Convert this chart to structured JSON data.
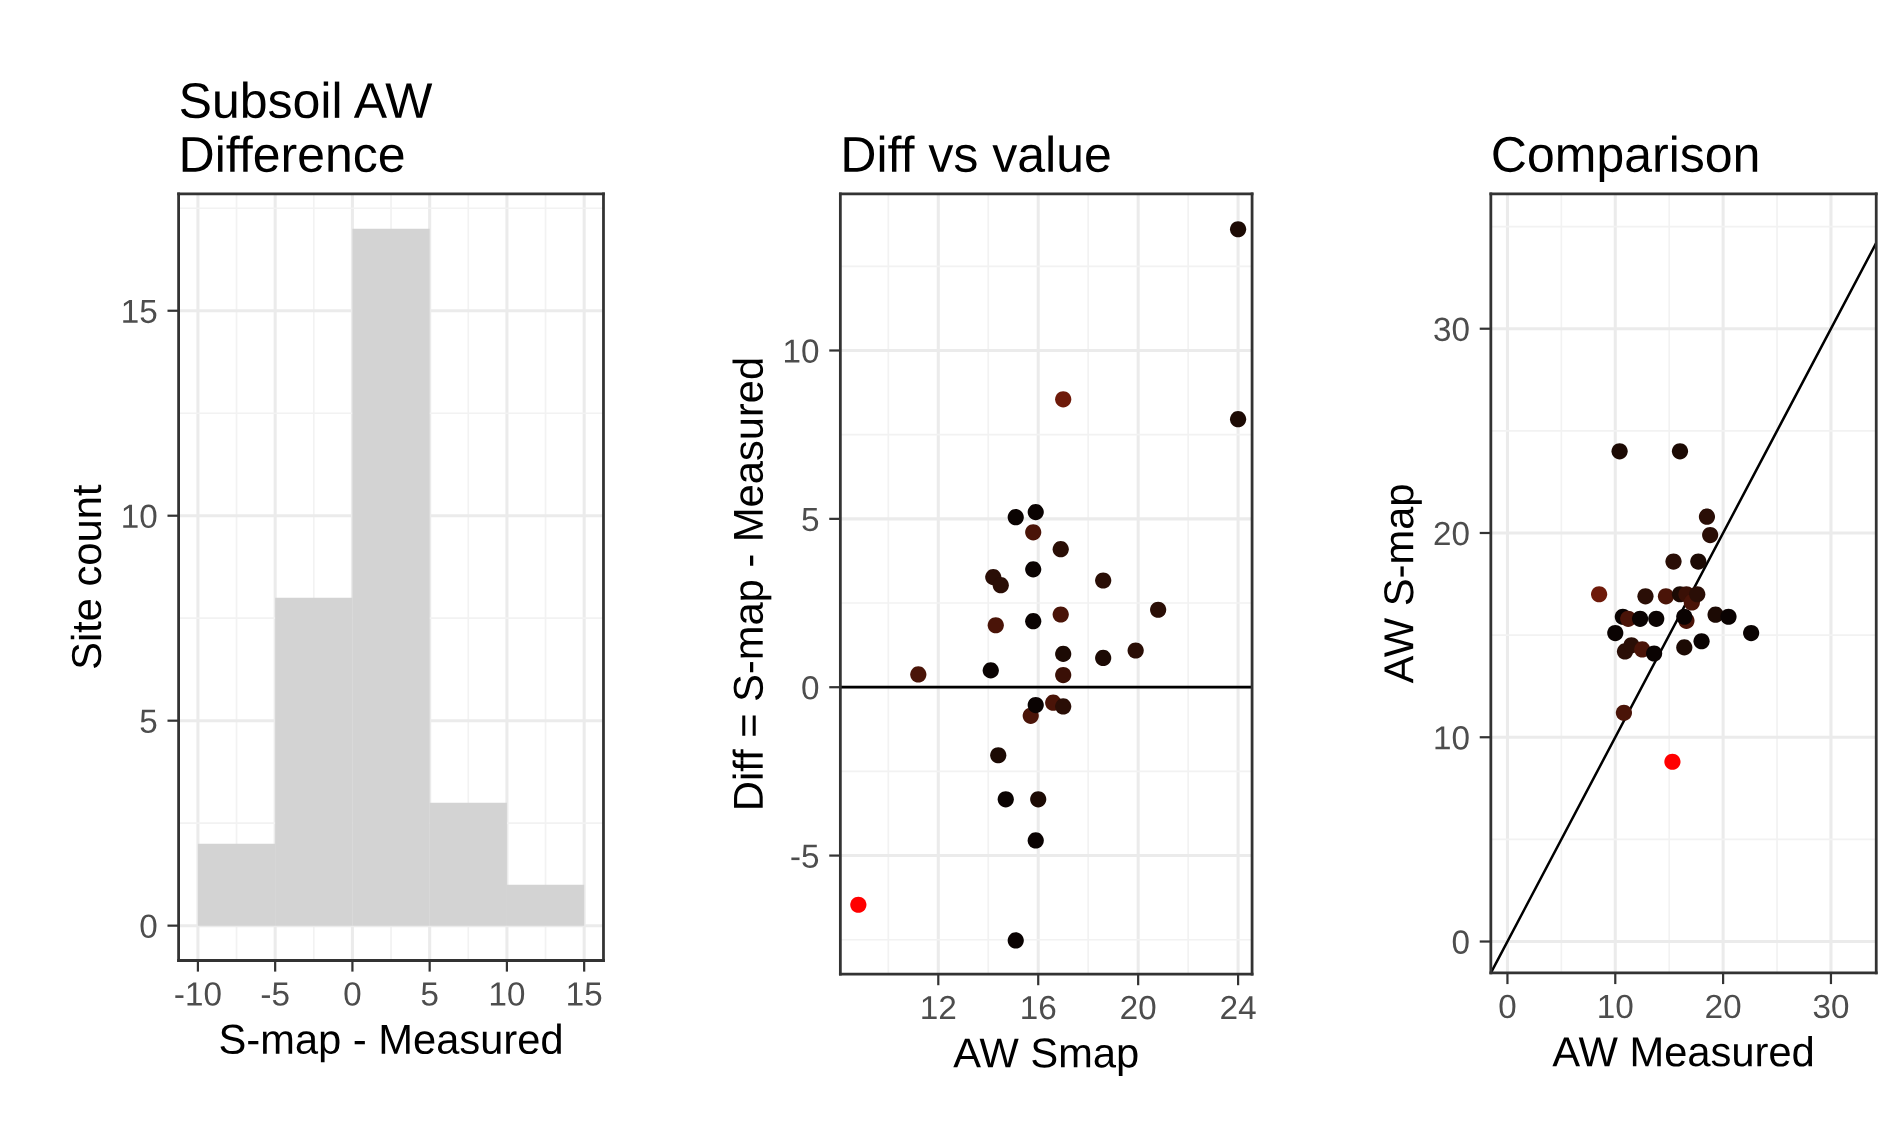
{
  "chart_data": [
    {
      "type": "histogram",
      "title": "Subsoil AW\nDifference",
      "xlabel": "S-map - Measured",
      "ylabel": "Site count",
      "bins": [
        -10,
        -5,
        0,
        5,
        10,
        15
      ],
      "values": [
        2,
        8,
        17,
        3,
        1
      ],
      "color": "#d3d3d3",
      "xlim": [
        -11.25,
        16.25
      ],
      "ylim": [
        -0.85,
        17.85
      ],
      "xticks": [
        -10,
        -5,
        0,
        5,
        10,
        15
      ],
      "yticks": [
        0,
        5,
        10,
        15
      ],
      "grid": true
    },
    {
      "type": "scatter",
      "title": "Diff vs value",
      "xlabel": "AW Smap",
      "ylabel": "Diff = S-map - Measured",
      "xlim": [
        8.08,
        24.56
      ],
      "ylim": [
        -8.52,
        14.65
      ],
      "xticks": [
        12,
        16,
        20,
        24
      ],
      "yticks": [
        -5,
        0,
        5,
        10
      ],
      "grid": true,
      "ref_lines": [
        {
          "axis": "y",
          "value": 0,
          "color": "#000000"
        }
      ],
      "series": [
        {
          "type": "scatter",
          "marker": "circle",
          "x": [
            24.0,
            24.0,
            17.0,
            15.1,
            15.9,
            15.8,
            16.9,
            14.2,
            14.5,
            15.8,
            18.6,
            20.8,
            14.3,
            15.8,
            16.9,
            17.0,
            17.0,
            18.6,
            19.9,
            11.2,
            14.1,
            15.7,
            15.9,
            16.6,
            17.0,
            14.4,
            14.7,
            16.0,
            15.9,
            15.1,
            8.8
          ],
          "values": [
            13.6,
            7.96,
            8.55,
            5.05,
            5.2,
            4.6,
            4.1,
            3.27,
            3.03,
            3.5,
            3.17,
            2.3,
            1.84,
            1.96,
            2.16,
            0.99,
            0.36,
            0.87,
            1.09,
            0.38,
            0.5,
            -0.85,
            -0.53,
            -0.46,
            -0.57,
            -2.02,
            -3.33,
            -3.33,
            -4.55,
            -7.52,
            -6.46
          ],
          "colors": [
            "#1c0a04",
            "#1c0a04",
            "#6e1a0a",
            "#0a0302",
            "#0a0302",
            "#4a1408",
            "#2a0e06",
            "#2a0e06",
            "#2a0e06",
            "#0a0302",
            "#2a0e06",
            "#2a0e06",
            "#4a1408",
            "#0a0302",
            "#4a1408",
            "#1c0a04",
            "#3a1006",
            "#1c0a04",
            "#2a0e06",
            "#4a1408",
            "#0a0302",
            "#4a1408",
            "#0a0302",
            "#4a1408",
            "#2a0e06",
            "#1c0a04",
            "#0a0302",
            "#1c0a04",
            "#0a0302",
            "#0a0302",
            "#ff0000"
          ]
        }
      ]
    },
    {
      "type": "scatter",
      "title": "Comparison",
      "xlabel": "AW Measured",
      "ylabel": "AW S-map",
      "xlim": [
        -1.54,
        34.2
      ],
      "ylim": [
        -1.54,
        36.6
      ],
      "xticks": [
        0,
        10,
        20,
        30
      ],
      "yticks": [
        0,
        10,
        20,
        30
      ],
      "grid": true,
      "series": [
        {
          "type": "scatter",
          "marker": "circle",
          "x": [
            10.4,
            16.0,
            8.5,
            10.0,
            10.7,
            11.2,
            12.8,
            10.9,
            11.5,
            12.3,
            15.4,
            18.5,
            12.5,
            13.8,
            14.7,
            16.0,
            16.6,
            17.7,
            18.8,
            10.8,
            13.6,
            16.6,
            16.4,
            17.1,
            17.6,
            16.4,
            18.0,
            19.3,
            20.5,
            22.6,
            15.3
          ],
          "values": [
            24.0,
            24.0,
            17.0,
            15.1,
            15.9,
            15.8,
            16.9,
            14.2,
            14.5,
            15.8,
            18.6,
            20.8,
            14.3,
            15.8,
            16.9,
            17.0,
            17.0,
            18.6,
            19.9,
            11.2,
            14.1,
            15.7,
            15.9,
            16.6,
            17.0,
            14.4,
            14.7,
            16.0,
            15.9,
            15.1,
            8.8
          ],
          "colors": [
            "#1c0a04",
            "#1c0a04",
            "#6e1a0a",
            "#0a0302",
            "#0a0302",
            "#4a1408",
            "#2a0e06",
            "#2a0e06",
            "#2a0e06",
            "#0a0302",
            "#2a0e06",
            "#2a0e06",
            "#4a1408",
            "#0a0302",
            "#4a1408",
            "#1c0a04",
            "#3a1006",
            "#1c0a04",
            "#2a0e06",
            "#4a1408",
            "#0a0302",
            "#4a1408",
            "#0a0302",
            "#4a1408",
            "#2a0e06",
            "#1c0a04",
            "#0a0302",
            "#1c0a04",
            "#0a0302",
            "#0a0302",
            "#ff0000"
          ]
        },
        {
          "type": "line",
          "x": [
            -1.5,
            34.2
          ],
          "values": [
            -1.5,
            34.2
          ],
          "color": "#000000",
          "line_style": "solid"
        }
      ]
    }
  ]
}
